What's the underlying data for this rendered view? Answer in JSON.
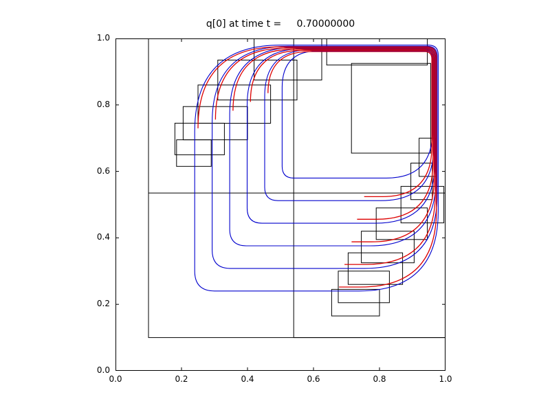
{
  "figure": {
    "background": "#ffffff"
  },
  "colors": {
    "frame": "#000000",
    "patch_edge": "#000000",
    "blue_contour": "#0000cd",
    "red_contour": "#dd0000",
    "text": "#000000"
  },
  "chart_data": {
    "type": "contour",
    "title": "q[0] at time t =     0.70000000",
    "xlabel": "",
    "ylabel": "",
    "xlim": [
      0.0,
      1.0
    ],
    "ylim": [
      0.0,
      1.0
    ],
    "grid": false,
    "legend": null,
    "x_tick_values": [
      0.0,
      0.2,
      0.4,
      0.6,
      0.8,
      1.0
    ],
    "y_tick_values": [
      0.0,
      0.2,
      0.4,
      0.6,
      0.8,
      1.0
    ],
    "x_tick_labels": [
      "0.0",
      "0.2",
      "0.4",
      "0.6",
      "0.8",
      "1.0"
    ],
    "y_tick_labels": [
      "0.0",
      "0.2",
      "0.4",
      "0.6",
      "0.8",
      "1.0"
    ],
    "amr_patches": [
      [
        0.1,
        0.1,
        1.0,
        1.0
      ],
      [
        0.54,
        0.1,
        1.0,
        1.0
      ],
      [
        0.1,
        0.535,
        1.0,
        1.0
      ],
      [
        0.42,
        0.875,
        0.625,
        1.0
      ],
      [
        0.31,
        0.815,
        0.55,
        0.935
      ],
      [
        0.25,
        0.745,
        0.47,
        0.86
      ],
      [
        0.205,
        0.695,
        0.4,
        0.795
      ],
      [
        0.18,
        0.65,
        0.33,
        0.745
      ],
      [
        0.185,
        0.615,
        0.29,
        0.695
      ],
      [
        0.64,
        0.92,
        0.945,
        1.0
      ],
      [
        0.715,
        0.655,
        0.955,
        0.925
      ],
      [
        0.92,
        0.585,
        0.97,
        0.7
      ],
      [
        0.895,
        0.515,
        0.96,
        0.625
      ],
      [
        0.865,
        0.445,
        0.995,
        0.555
      ],
      [
        0.79,
        0.395,
        0.945,
        0.49
      ],
      [
        0.745,
        0.325,
        0.905,
        0.42
      ],
      [
        0.705,
        0.26,
        0.87,
        0.355
      ],
      [
        0.675,
        0.205,
        0.83,
        0.3
      ],
      [
        0.655,
        0.165,
        0.8,
        0.245
      ]
    ],
    "contours": {
      "blue": [
        {
          "left": 0.24,
          "bottom": 0.24,
          "right": 0.978,
          "top": 0.98,
          "rtl": 0.26,
          "rtr": 0.03,
          "rbl": 0.06,
          "rbr": 0.24
        },
        {
          "left": 0.293,
          "bottom": 0.308,
          "right": 0.9745,
          "top": 0.9765,
          "rtl": 0.23,
          "rtr": 0.03,
          "rbl": 0.055,
          "rbr": 0.22
        },
        {
          "left": 0.346,
          "bottom": 0.376,
          "right": 0.971,
          "top": 0.973,
          "rtl": 0.2,
          "rtr": 0.028,
          "rbl": 0.05,
          "rbr": 0.2
        },
        {
          "left": 0.399,
          "bottom": 0.444,
          "right": 0.9675,
          "top": 0.9695,
          "rtl": 0.17,
          "rtr": 0.026,
          "rbl": 0.045,
          "rbr": 0.18
        },
        {
          "left": 0.452,
          "bottom": 0.512,
          "right": 0.964,
          "top": 0.966,
          "rtl": 0.14,
          "rtr": 0.024,
          "rbl": 0.04,
          "rbr": 0.16
        },
        {
          "left": 0.505,
          "bottom": 0.58,
          "right": 0.9605,
          "top": 0.9625,
          "rtl": 0.11,
          "rtr": 0.022,
          "rbl": 0.035,
          "rbr": 0.14
        }
      ],
      "red": [
        {
          "left": 0.25,
          "bottom": 0.252,
          "right": 0.9725,
          "top": 0.9745,
          "rtl": 0.245,
          "rtr": 0.03,
          "rbr": 0.23,
          "stub": 0.065,
          "open": true
        },
        {
          "left": 0.303,
          "bottom": 0.32,
          "right": 0.969,
          "top": 0.971,
          "rtl": 0.215,
          "rtr": 0.028,
          "rbr": 0.21,
          "stub": 0.065,
          "open": true
        },
        {
          "left": 0.356,
          "bottom": 0.388,
          "right": 0.9655,
          "top": 0.9675,
          "rtl": 0.185,
          "rtr": 0.026,
          "rbr": 0.19,
          "stub": 0.06,
          "open": true
        },
        {
          "left": 0.409,
          "bottom": 0.456,
          "right": 0.962,
          "top": 0.964,
          "rtl": 0.155,
          "rtr": 0.024,
          "rbr": 0.17,
          "stub": 0.06,
          "open": true
        },
        {
          "left": 0.462,
          "bottom": 0.524,
          "right": 0.9585,
          "top": 0.9605,
          "rtl": 0.125,
          "rtr": 0.022,
          "rbr": 0.15,
          "stub": 0.055,
          "open": true
        }
      ]
    }
  }
}
